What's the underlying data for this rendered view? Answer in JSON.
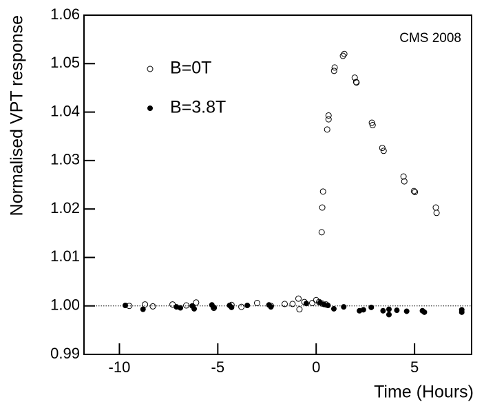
{
  "chart_data": {
    "type": "scatter",
    "xlabel": "Time (Hours)",
    "ylabel": "Normalised VPT response",
    "annotation": "CMS 2008",
    "xlim": [
      -11.8,
      7.9
    ],
    "ylim": [
      0.99,
      1.06
    ],
    "xticks": [
      -10,
      -5,
      0,
      5
    ],
    "yticks": [
      0.99,
      {
        "value": 1.0,
        "label": "1.00"
      },
      1.01,
      1.02,
      1.03,
      1.04,
      1.05,
      1.06
    ],
    "reference_line": 1.0,
    "legend": "upper left",
    "series": [
      {
        "name": "B=0T",
        "marker": "open",
        "color": "#000000",
        "x": [
          0.28,
          0.31,
          0.35,
          0.56,
          0.63,
          0.63,
          0.91,
          0.94,
          1.36,
          1.43,
          1.96,
          2.03,
          2.05,
          2.83,
          2.87,
          3.36,
          3.43,
          4.44,
          4.48,
          4.97,
          5.02,
          6.08,
          6.12,
          -9.5,
          -8.7,
          -8.3,
          -7.3,
          -6.6,
          -6.1,
          -5.2,
          -4.3,
          -3.8,
          -3.0,
          -2.3,
          -1.6,
          -1.2,
          -0.9,
          -0.85,
          -0.6,
          -0.2,
          0.0,
          0.15,
          0.3,
          0.5
        ],
        "y": [
          1.0152,
          1.0203,
          1.0236,
          1.0364,
          1.0385,
          1.0393,
          1.0485,
          1.0492,
          1.0516,
          1.052,
          1.0471,
          1.0462,
          1.0461,
          1.0378,
          1.0373,
          1.0326,
          1.032,
          1.0267,
          1.0257,
          1.0237,
          1.0235,
          1.0203,
          1.0192,
          1.0,
          1.0003,
          0.9999,
          1.0003,
          1.0001,
          1.0007,
          0.9996,
          1.0002,
          0.9998,
          1.0006,
          1.0,
          1.0004,
          1.0004,
          1.0015,
          0.9993,
          1.0008,
          1.0006,
          1.0012,
          1.0008,
          1.0005,
          1.0003
        ]
      },
      {
        "name": "B=3.8T",
        "marker": "filled",
        "color": "#000000",
        "x": [
          -9.7,
          -8.8,
          -7.1,
          -6.9,
          -6.3,
          -6.2,
          -5.3,
          -5.2,
          -4.4,
          -4.3,
          -3.5,
          -2.4,
          -2.3,
          -0.5,
          0.2,
          0.4,
          0.6,
          0.9,
          1.4,
          2.2,
          2.4,
          2.8,
          3.4,
          3.7,
          3.7,
          4.1,
          4.6,
          5.4,
          5.5,
          7.4,
          7.4
        ],
        "y": [
          1.0001,
          0.9993,
          0.9998,
          0.9996,
          1.0,
          0.9994,
          1.0002,
          0.9997,
          1.0001,
          0.9997,
          1.0001,
          1.0002,
          0.9998,
          1.0005,
          1.0007,
          1.0003,
          1.0001,
          0.9994,
          0.9998,
          0.999,
          0.9992,
          0.9997,
          0.999,
          0.9993,
          0.9982,
          0.9991,
          0.9989,
          0.999,
          0.9987,
          0.9992,
          0.9987
        ]
      }
    ]
  }
}
